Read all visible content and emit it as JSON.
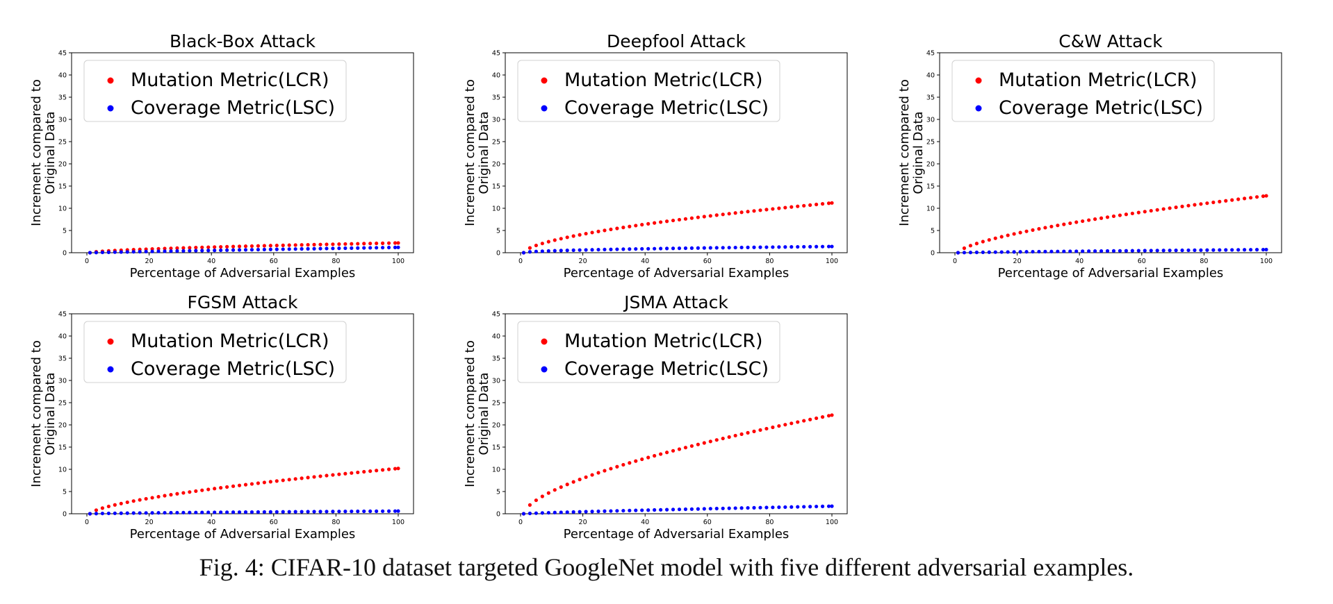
{
  "caption": "Fig. 4: CIFAR-10 dataset targeted GoogleNet model with five different adversarial examples.",
  "colors": {
    "lcr": "#ff0000",
    "lsc": "#0000ff",
    "axis": "#000000"
  },
  "chart_data": [
    {
      "type": "scatter",
      "title": "Black-Box Attack",
      "xlabel": "Percentage of Adversarial Examples",
      "ylabel": [
        "Increment compared to",
        "Original Data"
      ],
      "xlim": [
        0,
        100
      ],
      "ylim": [
        0,
        45
      ],
      "xticks": [
        0,
        20,
        40,
        60,
        80,
        100
      ],
      "yticks": [
        0,
        5,
        10,
        15,
        20,
        25,
        30,
        35,
        40,
        45
      ],
      "legend_position": "top-left",
      "series": [
        {
          "name": "Mutation Metric(LCR)",
          "color": "#ff0000",
          "x_start": 1,
          "x_end": 100,
          "x_step": 2,
          "y_end": 2.2,
          "curve": 0.6
        },
        {
          "name": "Coverage Metric(LSC)",
          "color": "#0000ff",
          "x_start": 1,
          "x_end": 100,
          "x_step": 2,
          "y_end": 1.2,
          "curve": 0.9
        }
      ]
    },
    {
      "type": "scatter",
      "title": "Deepfool Attack",
      "xlabel": "Percentage of Adversarial Examples",
      "ylabel": [
        "Increment compared to",
        "Original Data"
      ],
      "xlim": [
        0,
        100
      ],
      "ylim": [
        0,
        45
      ],
      "xticks": [
        0,
        20,
        40,
        60,
        80,
        100
      ],
      "yticks": [
        0,
        5,
        10,
        15,
        20,
        25,
        30,
        35,
        40,
        45
      ],
      "legend_position": "top-left",
      "series": [
        {
          "name": "Mutation Metric(LCR)",
          "color": "#ff0000",
          "x_start": 1,
          "x_end": 100,
          "x_step": 2,
          "y_end": 11.2,
          "curve": 0.6
        },
        {
          "name": "Coverage Metric(LSC)",
          "color": "#0000ff",
          "x_start": 1,
          "x_end": 100,
          "x_step": 2,
          "y_end": 1.4,
          "curve": 0.5
        }
      ]
    },
    {
      "type": "scatter",
      "title": "C&W Attack",
      "xlabel": "Percentage of Adversarial Examples",
      "ylabel": [
        "Increment compared to",
        "Original Data"
      ],
      "xlim": [
        0,
        100
      ],
      "ylim": [
        0,
        45
      ],
      "xticks": [
        0,
        20,
        40,
        60,
        80,
        100
      ],
      "yticks": [
        0,
        5,
        10,
        15,
        20,
        25,
        30,
        35,
        40,
        45
      ],
      "legend_position": "top-left",
      "series": [
        {
          "name": "Mutation Metric(LCR)",
          "color": "#ff0000",
          "x_start": 1,
          "x_end": 100,
          "x_step": 2,
          "y_end": 12.8,
          "curve": 0.65
        },
        {
          "name": "Coverage Metric(LSC)",
          "color": "#0000ff",
          "x_start": 1,
          "x_end": 100,
          "x_step": 2,
          "y_end": 0.7,
          "curve": 0.8
        }
      ]
    },
    {
      "type": "scatter",
      "title": "FGSM Attack",
      "xlabel": "Percentage of Adversarial Examples",
      "ylabel": [
        "Increment compared to",
        "Original Data"
      ],
      "xlim": [
        0,
        100
      ],
      "ylim": [
        0,
        45
      ],
      "xticks": [
        0,
        20,
        40,
        60,
        80,
        100
      ],
      "yticks": [
        0,
        5,
        10,
        15,
        20,
        25,
        30,
        35,
        40,
        45
      ],
      "legend_position": "top-left",
      "series": [
        {
          "name": "Mutation Metric(LCR)",
          "color": "#ff0000",
          "x_start": 1,
          "x_end": 100,
          "x_step": 2,
          "y_end": 10.2,
          "curve": 0.65
        },
        {
          "name": "Coverage Metric(LSC)",
          "color": "#0000ff",
          "x_start": 1,
          "x_end": 100,
          "x_step": 2,
          "y_end": 0.6,
          "curve": 0.7
        }
      ]
    },
    {
      "type": "scatter",
      "title": "JSMA Attack",
      "xlabel": "Percentage of Adversarial Examples",
      "ylabel": [
        "Increment compared to",
        "Original Data"
      ],
      "xlim": [
        0,
        100
      ],
      "ylim": [
        0,
        45
      ],
      "xticks": [
        0,
        20,
        40,
        60,
        80,
        100
      ],
      "yticks": [
        0,
        5,
        10,
        15,
        20,
        25,
        30,
        35,
        40,
        45
      ],
      "legend_position": "top-left",
      "series": [
        {
          "name": "Mutation Metric(LCR)",
          "color": "#ff0000",
          "x_start": 1,
          "x_end": 100,
          "x_step": 2,
          "y_end": 22.2,
          "curve": 0.62
        },
        {
          "name": "Coverage Metric(LSC)",
          "color": "#0000ff",
          "x_start": 1,
          "x_end": 100,
          "x_step": 2,
          "y_end": 1.7,
          "curve": 0.8
        }
      ]
    }
  ]
}
